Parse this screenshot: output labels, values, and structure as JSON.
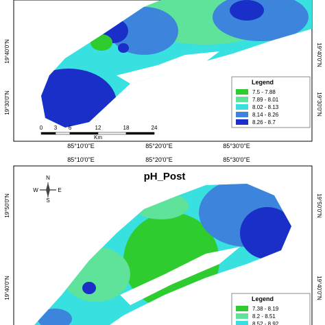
{
  "top_map": {
    "lat_labels_left": [
      "19°40'0\"N",
      "19°30'0\"N"
    ],
    "lat_labels_right": [
      "19°40'0\"N",
      "19°30'0\"N"
    ],
    "lon_labels": [
      "85°10'0\"E",
      "85°20'0\"E",
      "85°30'0\"E"
    ],
    "scale_bar": {
      "ticks": [
        "0",
        "3",
        "6",
        "12",
        "18",
        "24"
      ],
      "unit": "Km"
    },
    "legend": {
      "title": "Legend",
      "items": [
        {
          "label": "7.5 - 7.88",
          "color": "#2ecc2e"
        },
        {
          "label": "7.89 - 8.01",
          "color": "#5fe39a"
        },
        {
          "label": "8.02 - 8.13",
          "color": "#38e0e0"
        },
        {
          "label": "8.14 - 8.26",
          "color": "#3d85dc"
        },
        {
          "label": "8.26 - 8.7",
          "color": "#1a2fc8"
        }
      ]
    }
  },
  "bottom_map": {
    "title": "pH_Post",
    "lon_labels": [
      "85°10'0\"E",
      "85°20'0\"E",
      "85°30'0\"E"
    ],
    "lat_labels_left": [
      "19°50'0\"N",
      "19°40'0\"N"
    ],
    "lat_labels_right": [
      "19°50'0\"N",
      "19°40'0\"N"
    ],
    "compass": {
      "n": "N",
      "e": "E",
      "s": "S",
      "w": "W"
    },
    "legend": {
      "title": "Legend",
      "items": [
        {
          "label": "7.38 - 8.19",
          "color": "#2ecc2e"
        },
        {
          "label": "8.2 - 8.51",
          "color": "#5fe39a"
        },
        {
          "label": "8.52 - 8.92",
          "color": "#38e0e0"
        }
      ]
    }
  }
}
